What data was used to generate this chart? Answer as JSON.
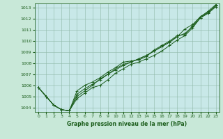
{
  "title": "Graphe pression niveau de la mer (hPa)",
  "bg_color": "#c8e8d8",
  "plot_bg_color": "#c8e8e8",
  "grid_color": "#90b8a8",
  "line_color": "#1a5c1a",
  "spine_color": "#1a5c1a",
  "x_ticks": [
    0,
    1,
    2,
    3,
    4,
    5,
    6,
    7,
    8,
    9,
    10,
    11,
    12,
    13,
    14,
    15,
    16,
    17,
    18,
    19,
    20,
    21,
    22,
    23
  ],
  "y_ticks": [
    1004,
    1005,
    1006,
    1007,
    1008,
    1009,
    1010,
    1011,
    1012,
    1013
  ],
  "ylim": [
    1003.6,
    1013.4
  ],
  "xlim": [
    -0.5,
    23.5
  ],
  "series": [
    [
      1005.8,
      1005.0,
      1004.2,
      1003.8,
      1003.7,
      1004.8,
      1005.3,
      1005.8,
      1006.0,
      1006.5,
      1007.1,
      1007.5,
      1007.9,
      1008.1,
      1008.4,
      1008.7,
      1009.1,
      1009.6,
      1010.1,
      1010.5,
      1011.2,
      1012.1,
      1012.5,
      1013.1
    ],
    [
      1005.8,
      1005.0,
      1004.2,
      1003.8,
      1003.7,
      1005.0,
      1005.5,
      1006.0,
      1006.6,
      1007.0,
      1007.5,
      1007.9,
      1008.1,
      1008.4,
      1008.7,
      1009.1,
      1009.5,
      1009.9,
      1010.4,
      1011.1,
      1011.5,
      1012.2,
      1012.6,
      1013.2
    ],
    [
      1005.8,
      1005.0,
      1004.2,
      1003.8,
      1003.7,
      1005.5,
      1006.0,
      1006.3,
      1006.7,
      1007.2,
      1007.6,
      1008.1,
      1008.2,
      1008.3,
      1008.6,
      1009.2,
      1009.6,
      1010.0,
      1010.5,
      1010.6,
      1011.4,
      1012.2,
      1012.7,
      1013.3
    ],
    [
      1005.8,
      1005.0,
      1004.2,
      1003.8,
      1003.7,
      1005.2,
      1005.7,
      1006.1,
      1006.5,
      1007.0,
      1007.4,
      1007.8,
      1008.1,
      1008.4,
      1008.7,
      1009.1,
      1009.5,
      1009.9,
      1010.4,
      1010.7,
      1011.3,
      1012.1,
      1012.6,
      1013.2
    ]
  ],
  "label_fontsize": 5.0,
  "tick_fontsize": 4.5,
  "xlabel_fontsize": 5.5,
  "linewidth": 0.7,
  "markersize": 2.5,
  "markeredgewidth": 0.7
}
